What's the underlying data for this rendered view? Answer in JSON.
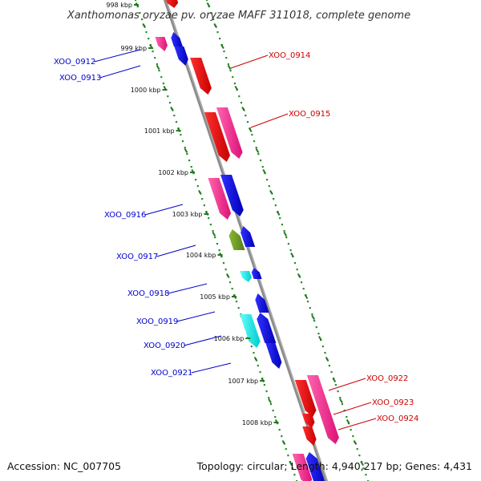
{
  "title": "Xanthomonas oryzae pv. oryzae MAFF 311018, complete genome",
  "footer": {
    "accession": "Accession: NC_007705",
    "summary": "Topology: circular; Length: 4,940,217 bp; Genes: 4,431"
  },
  "colors": {
    "backbone": "#8c8c8c",
    "ruler_dots": "#2e8b2e",
    "left_label": "#0000cc",
    "right_label": "#cc0000",
    "red": "#ee0000",
    "pink": "#ee2288",
    "blue": "#0000dd",
    "cyan": "#00dddd",
    "olive": "#669922"
  },
  "ruler_labels": [
    {
      "label": "998 kbp"
    },
    {
      "label": "999 kbp"
    },
    {
      "label": "1000 kbp"
    },
    {
      "label": "1001 kbp"
    },
    {
      "label": "1002 kbp"
    },
    {
      "label": "1003 kbp"
    },
    {
      "label": "1004 kbp"
    },
    {
      "label": "1005 kbp"
    },
    {
      "label": "1006 kbp"
    },
    {
      "label": "1007 kbp"
    },
    {
      "label": "1008 kbp"
    }
  ],
  "gene_labels": {
    "left": [
      "XOO_0912",
      "XOO_0913",
      "XOO_0916",
      "XOO_0917",
      "XOO_0918",
      "XOO_0919",
      "XOO_0920",
      "XOO_0921"
    ],
    "right": [
      "XOO_0914",
      "XOO_0915",
      "XOO_0922",
      "XOO_0923",
      "XOO_0924"
    ]
  }
}
